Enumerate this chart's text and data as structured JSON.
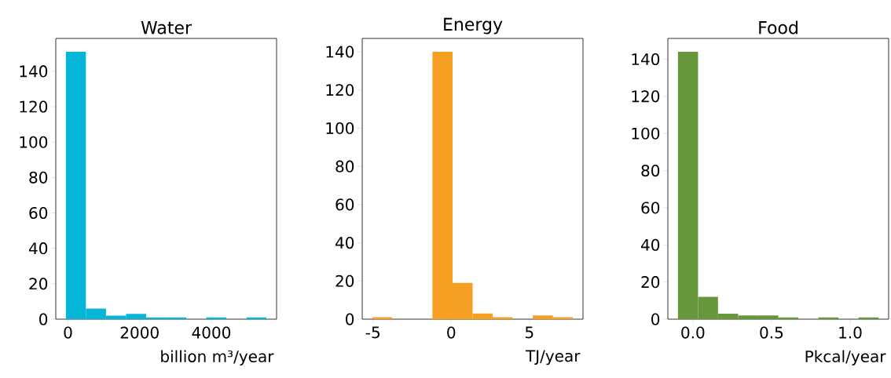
{
  "chart_data": [
    {
      "type": "histogram",
      "title": "Water",
      "xlabel": "billion m³/year",
      "color": "#06b6d8",
      "bins": [
        -60,
        500,
        1060,
        1620,
        2180,
        2740,
        3300,
        3860,
        4420,
        4980,
        5540
      ],
      "values": [
        151,
        6,
        2,
        3,
        1,
        1,
        0,
        1,
        0,
        1
      ],
      "xlim": [
        -340,
        5820
      ],
      "xticks": [
        0,
        2000,
        4000
      ],
      "ylim": [
        0,
        158.55
      ],
      "yticks": [
        0,
        20,
        40,
        60,
        80,
        100,
        120,
        140
      ]
    },
    {
      "type": "histogram",
      "title": "Energy",
      "xlabel": "TJ/year",
      "color": "#f5a023",
      "bins": [
        -5.05,
        -3.77,
        -2.48,
        -1.2,
        0.09,
        1.37,
        2.65,
        3.94,
        5.22,
        6.51,
        7.79
      ],
      "values": [
        1,
        0,
        0,
        140,
        19,
        3,
        1,
        0,
        2,
        1
      ],
      "xlim": [
        -5.69,
        8.43
      ],
      "xticks": [
        -5,
        0,
        5
      ],
      "ylim": [
        0,
        147
      ],
      "yticks": [
        0,
        20,
        40,
        60,
        80,
        100,
        120,
        140
      ]
    },
    {
      "type": "histogram",
      "title": "Food",
      "xlabel": "Pkcal/year",
      "color": "#67973d",
      "bins": [
        -0.095,
        0.033,
        0.16,
        0.288,
        0.415,
        0.543,
        0.671,
        0.798,
        0.926,
        1.053,
        1.181
      ],
      "values": [
        144,
        12,
        3,
        2,
        2,
        1,
        0,
        1,
        0,
        1
      ],
      "xlim": [
        -0.159,
        1.245
      ],
      "xticks": [
        {
          "value": 0,
          "label": "0.0"
        },
        {
          "value": 0.5,
          "label": "0.5"
        },
        {
          "value": 1,
          "label": "1.0"
        }
      ],
      "ylim": [
        0,
        151.2
      ],
      "yticks": [
        0,
        20,
        40,
        60,
        80,
        100,
        120,
        140
      ]
    }
  ]
}
